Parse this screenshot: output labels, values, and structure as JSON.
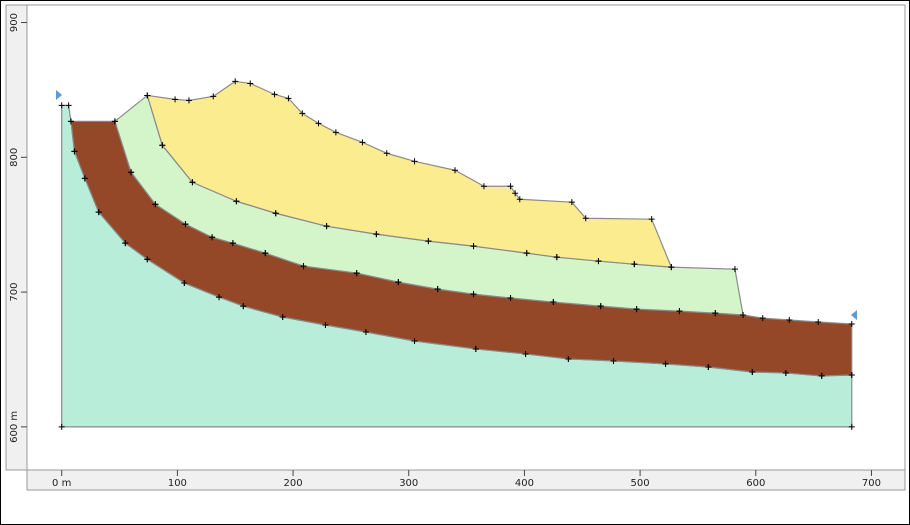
{
  "chart_data": {
    "type": "section",
    "xlim": [
      -30,
      729
    ],
    "ylim": [
      568,
      913
    ],
    "xticks": [
      {
        "value": 0,
        "label": "0 m"
      },
      100,
      200,
      300,
      400,
      500,
      600,
      700
    ],
    "yticks": [
      {
        "value": 600,
        "label": "600 m"
      },
      700,
      800,
      900
    ],
    "regions": [
      {
        "color": "#b8edd9",
        "x": [
          0,
          0,
          6,
          8,
          11,
          20,
          32,
          55,
          74,
          106,
          136,
          157,
          191,
          228,
          263,
          305,
          358,
          401,
          438,
          477,
          522,
          559,
          597,
          626,
          657,
          683,
          683
        ],
        "y": [
          600,
          838.5,
          838.5,
          826.7,
          804.4,
          784.4,
          759.3,
          736.3,
          724.4,
          706.7,
          696.3,
          689.6,
          681.5,
          675.6,
          670.4,
          663.7,
          657.8,
          654.1,
          650.4,
          648.9,
          646.7,
          644.4,
          640.7,
          640,
          637.8,
          638.5,
          600
        ]
      },
      {
        "color": "#954827",
        "x": [
          8,
          46,
          60,
          81,
          107,
          130,
          148,
          176,
          209,
          255,
          291,
          325,
          356,
          388,
          425,
          466,
          497,
          534,
          565,
          589,
          606,
          629,
          654,
          683,
          683,
          657,
          626,
          597,
          559,
          522,
          477,
          438,
          401,
          358,
          305,
          263,
          228,
          191,
          157,
          136,
          106,
          74,
          55,
          32,
          20,
          11
        ],
        "y": [
          826.7,
          826.7,
          788.9,
          765.2,
          750.4,
          740.7,
          736.3,
          728.9,
          719.3,
          714.1,
          707.4,
          702.2,
          698.5,
          695.6,
          692.6,
          689.6,
          687.4,
          685.9,
          684.4,
          683,
          680.7,
          679.3,
          677.8,
          676.3,
          638.5,
          637.8,
          640,
          640.7,
          644.4,
          646.7,
          648.9,
          650.4,
          654.1,
          657.8,
          663.7,
          670.4,
          675.6,
          681.5,
          689.6,
          696.3,
          706.7,
          724.4,
          736.3,
          759.3,
          784.4,
          804.4
        ]
      },
      {
        "color": "#d4f5c9",
        "x": [
          46,
          74,
          87,
          113,
          151,
          185,
          229,
          272,
          317,
          356,
          402,
          428,
          464,
          495,
          527,
          582,
          589,
          565,
          534,
          497,
          466,
          425,
          388,
          356,
          325,
          291,
          255,
          209,
          176,
          148,
          130,
          107,
          81,
          60
        ],
        "y": [
          826.7,
          845.9,
          808.9,
          781.5,
          767.4,
          758.5,
          748.9,
          743,
          737.8,
          734.1,
          728.9,
          725.9,
          723,
          720.7,
          718.5,
          717,
          683,
          684.4,
          685.9,
          687.4,
          689.6,
          692.6,
          695.6,
          698.5,
          702.2,
          707.4,
          714.1,
          719.3,
          728.9,
          736.3,
          740.7,
          750.4,
          765.2,
          788.9
        ]
      },
      {
        "color": "#fcec90",
        "x": [
          74,
          98,
          110,
          131,
          150,
          163,
          184,
          196,
          208,
          222,
          237,
          260,
          281,
          305,
          340,
          365,
          388,
          392,
          396,
          441,
          453,
          510,
          527,
          495,
          464,
          428,
          402,
          356,
          317,
          272,
          229,
          185,
          151,
          113,
          87
        ],
        "y": [
          845.9,
          843,
          842.2,
          845.2,
          856.3,
          854.8,
          846.7,
          843.7,
          832.6,
          825.2,
          818.5,
          811.1,
          803,
          797,
          790.4,
          778.5,
          778.5,
          773.3,
          768.9,
          766.7,
          754.8,
          754.1,
          718.5,
          720.7,
          723,
          725.9,
          728.9,
          734.1,
          737.8,
          743,
          748.9,
          758.5,
          767.4,
          781.5,
          808.9
        ]
      }
    ]
  }
}
